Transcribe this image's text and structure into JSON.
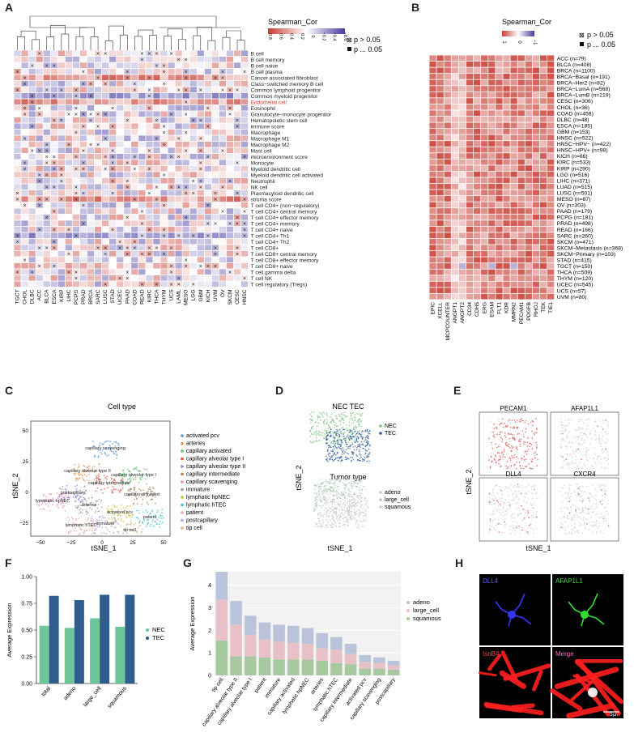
{
  "panels": {
    "a": {
      "letter": "A",
      "legend_title": "Spearman_Cor",
      "legend_ticks": [
        "0.8",
        "0.6",
        "0.4",
        "0.2",
        "0",
        "−0.2",
        "−0.4",
        "−0.6"
      ],
      "legend_sig": [
        "p > 0.05",
        "p ... 0.05"
      ],
      "cancers": [
        "TGCT",
        "CHOL",
        "DLBC",
        "ACC",
        "BLCA",
        "ESCA",
        "KIRP",
        "LIHC",
        "PCPG",
        "PRAD",
        "BRCA",
        "SARC",
        "LUSC",
        "STAD",
        "UCEC",
        "PAAD",
        "COAD",
        "READ",
        "KIRC",
        "THCA",
        "THYM",
        "UCS",
        "LAML",
        "MESO",
        "LGG",
        "GBM",
        "KICH",
        "UVM",
        "OV",
        "SKCM",
        "CESC",
        "HNSC"
      ],
      "cells": [
        "B cell",
        "B cell memory",
        "B cell naive",
        "B cell plasma",
        "Cancer associated fibroblast",
        "Class−switched memory B cell",
        "Common lymphoid progenitor",
        "Common myeloid progenitor",
        "Endothelial cell",
        "Eosinophil",
        "Granulocyte−monocyte progenitor",
        "Hematopoietic stem cell",
        "immune score",
        "Macrophage",
        "Macrophage M1",
        "Macrophage M2",
        "Mast cell",
        "microenvironment score",
        "Monocyte",
        "Myeloid dendritic cell",
        "Myeloid dendritic cell activated",
        "Neutrophil",
        "NK cell",
        "Plasmacytoid dendritic cell",
        "stroma score",
        "T cell CD4+ (non−regulatory)",
        "T cell CD4+ central memory",
        "T cell CD4+ effector memory",
        "T cell CD4+ memory",
        "T cell CD4+ naive",
        "T cell CD4+ Th1",
        "T cell CD4+ Th2",
        "T cell CD8+",
        "T cell CD8+ central memory",
        "T cell CD8+ effector memory",
        "T cell CD8+ naive",
        "T cell gamma delta",
        "T cell NK",
        "T cell regulatory (Tregs)"
      ],
      "highlight_row": "Endothelial cell"
    },
    "b": {
      "letter": "B",
      "legend_title": "Spearman_Cor",
      "legend_ticks": [
        "1",
        "0",
        "−1"
      ],
      "legend_sig": [
        "p > 0.05",
        "p ... 0.05"
      ],
      "genes": [
        "EPIC",
        "XCELL",
        "MCPCOUNTER",
        "ANGPT1",
        "ANGPT2",
        "CD34",
        "CDH5",
        "ERG",
        "ESAM",
        "FLT1",
        "KDR",
        "MMRN2",
        "PECAM1",
        "PDGFB",
        "RHOJ",
        "TEK",
        "TIE1"
      ],
      "cancers": [
        "ACC (n=79)",
        "BLCA (n=408)",
        "BRCA (n=1100)",
        "BRCA−Basal (n=191)",
        "BRCA−Her2 (n=82)",
        "BRCA−LumA (n=568)",
        "BRCA−LumB (n=219)",
        "CESC (n=306)",
        "CHOL (n=36)",
        "COAD (n=458)",
        "DLBC (n=48)",
        "ESCA (n=185)",
        "GBM (n=153)",
        "HNSC (n=522)",
        "HNSC−HPV− (n=422)",
        "HNSC−HPV+ (n=98)",
        "KICH (n=66)",
        "KIRC (n=533)",
        "KIRP (n=290)",
        "LGG (n=516)",
        "LIHC (n=371)",
        "LUAD (n=515)",
        "LUSC (n=501)",
        "MESO (n=87)",
        "OV (n=303)",
        "PAAD (n=179)",
        "PCPG (n=181)",
        "PRAD (n=498)",
        "READ (n=166)",
        "SARC (n=260)",
        "SKCM (n=471)",
        "SKCM−Metastasis (n=368)",
        "SKCM−Primary (n=103)",
        "STAD (n=415)",
        "TGCT (n=150)",
        "THCA (n=509)",
        "THYM (n=120)",
        "UCEC (n=545)",
        "UCS (n=57)",
        "UVM (n=80)"
      ]
    },
    "c": {
      "letter": "C",
      "title": "Cell type",
      "xlabel": "tSNE_1",
      "ylabel": "tSNE_2",
      "xticks": [
        "−50",
        "−25",
        "0",
        "25",
        "50"
      ],
      "yticks": [
        "50",
        "25",
        "0",
        "−25"
      ],
      "legend": [
        {
          "name": "activated pcv",
          "color": "#5b9bd5"
        },
        {
          "name": "arteries",
          "color": "#e6904a"
        },
        {
          "name": "capillary activated",
          "color": "#5fbf6a"
        },
        {
          "name": "capillary alveolar type I",
          "color": "#d9534f"
        },
        {
          "name": "capillary alveolar type II",
          "color": "#9b7fcf"
        },
        {
          "name": "capillary intermediate",
          "color": "#a9805a"
        },
        {
          "name": "capillary scavenging",
          "color": "#e68fc6"
        },
        {
          "name": "immature",
          "color": "#9a9a9a"
        },
        {
          "name": "lymphatic hpNEC",
          "color": "#c4c43d"
        },
        {
          "name": "lymphatic hTEC",
          "color": "#3fc3cf"
        },
        {
          "name": "patient",
          "color": "#f0a6a0"
        },
        {
          "name": "postcapillary",
          "color": "#b7a2dd"
        },
        {
          "name": "tip cell",
          "color": "#d2b48c"
        }
      ],
      "cluster_labels": [
        "capillary scavenging",
        "capillary alveolar type II",
        "capillary alveolar type I",
        "capillary intermediate",
        "postcapillary",
        "capillary activated",
        "lymphatic hpNEC",
        "arteries",
        "activated pcv",
        "patient",
        "lymphatic hTEC",
        "immature",
        "tip cell"
      ]
    },
    "d": {
      "letter": "D",
      "top_title": "NEC TEC",
      "top_legend": [
        {
          "name": "NEC",
          "color": "#7ac47f"
        },
        {
          "name": "TEC",
          "color": "#2f5e9e"
        }
      ],
      "bottom_title": "Tumor type",
      "bottom_legend": [
        {
          "name": "adeno",
          "color": "#b9c3d9"
        },
        {
          "name": "large_cell",
          "color": "#a7c9a0"
        },
        {
          "name": "squamous",
          "color": "#e7c1c7"
        }
      ],
      "xlabel": "tSNE_1",
      "ylabel": "tSNE_2"
    },
    "e": {
      "letter": "E",
      "genes": [
        "PECAM1",
        "AFAP1L1",
        "DLL4",
        "CXCR4"
      ],
      "xlabel": "tSNE_1",
      "ylabel": "tSNE_2"
    },
    "h": {
      "letter": "H",
      "labels": [
        {
          "text": "DLL4",
          "color": "#5a5aff"
        },
        {
          "text": "AFAP1L1",
          "color": "#3fdc3f"
        },
        {
          "text": "IsoB4",
          "color": "#ff4040"
        },
        {
          "text": "Merge",
          "color": "#ff66cc"
        }
      ],
      "scale": "25μm"
    }
  },
  "chart_data": [
    {
      "panel": "F",
      "type": "bar",
      "categories": [
        "total",
        "adeno",
        "large_cell",
        "squamous"
      ],
      "series": [
        {
          "name": "NEC",
          "values": [
            0.54,
            0.52,
            0.61,
            0.53
          ],
          "color": "#6cc69a"
        },
        {
          "name": "TEC",
          "values": [
            0.82,
            0.78,
            0.83,
            0.83
          ],
          "color": "#2e5d8e"
        }
      ],
      "ylabel": "Average Expression",
      "ylim": [
        0,
        1.0
      ],
      "yticks": [
        "0.00",
        "0.25",
        "0.50",
        "0.75",
        "1.00"
      ],
      "legend": "right",
      "grid": false
    },
    {
      "panel": "G",
      "type": "bar",
      "stacked": true,
      "categories": [
        "tip cell",
        "capillary alveolar type II",
        "capillary alveolar type I",
        "patient",
        "immature",
        "capillary activated",
        "lymphatic hpNEC",
        "arteries",
        "lymphatic hTEC",
        "capillary intermediate",
        "activated pcv",
        "capillary scavenging",
        "postcapillary"
      ],
      "series": [
        {
          "name": "adeno",
          "values": [
            1.25,
            1.05,
            0.85,
            0.75,
            0.75,
            0.75,
            0.7,
            0.68,
            0.55,
            0.45,
            0.3,
            0.25,
            0.2
          ],
          "color": "#b9c3d9"
        },
        {
          "name": "large_cell",
          "values": [
            1.8,
            1.4,
            0.95,
            0.8,
            0.8,
            0.75,
            0.7,
            0.55,
            0.6,
            0.45,
            0.3,
            0.25,
            0.2
          ],
          "color": "#e7c1c7"
        },
        {
          "name": "squamous",
          "values": [
            1.55,
            0.85,
            0.85,
            0.8,
            0.7,
            0.7,
            0.7,
            0.65,
            0.55,
            0.5,
            0.3,
            0.3,
            0.25
          ],
          "color": "#a7c9a0"
        }
      ],
      "ylabel": "Average Expression",
      "ylim": [
        0,
        4.6
      ],
      "yticks": [
        "0",
        "1",
        "2",
        "3",
        "4"
      ],
      "legend": "right",
      "grid": true
    }
  ]
}
